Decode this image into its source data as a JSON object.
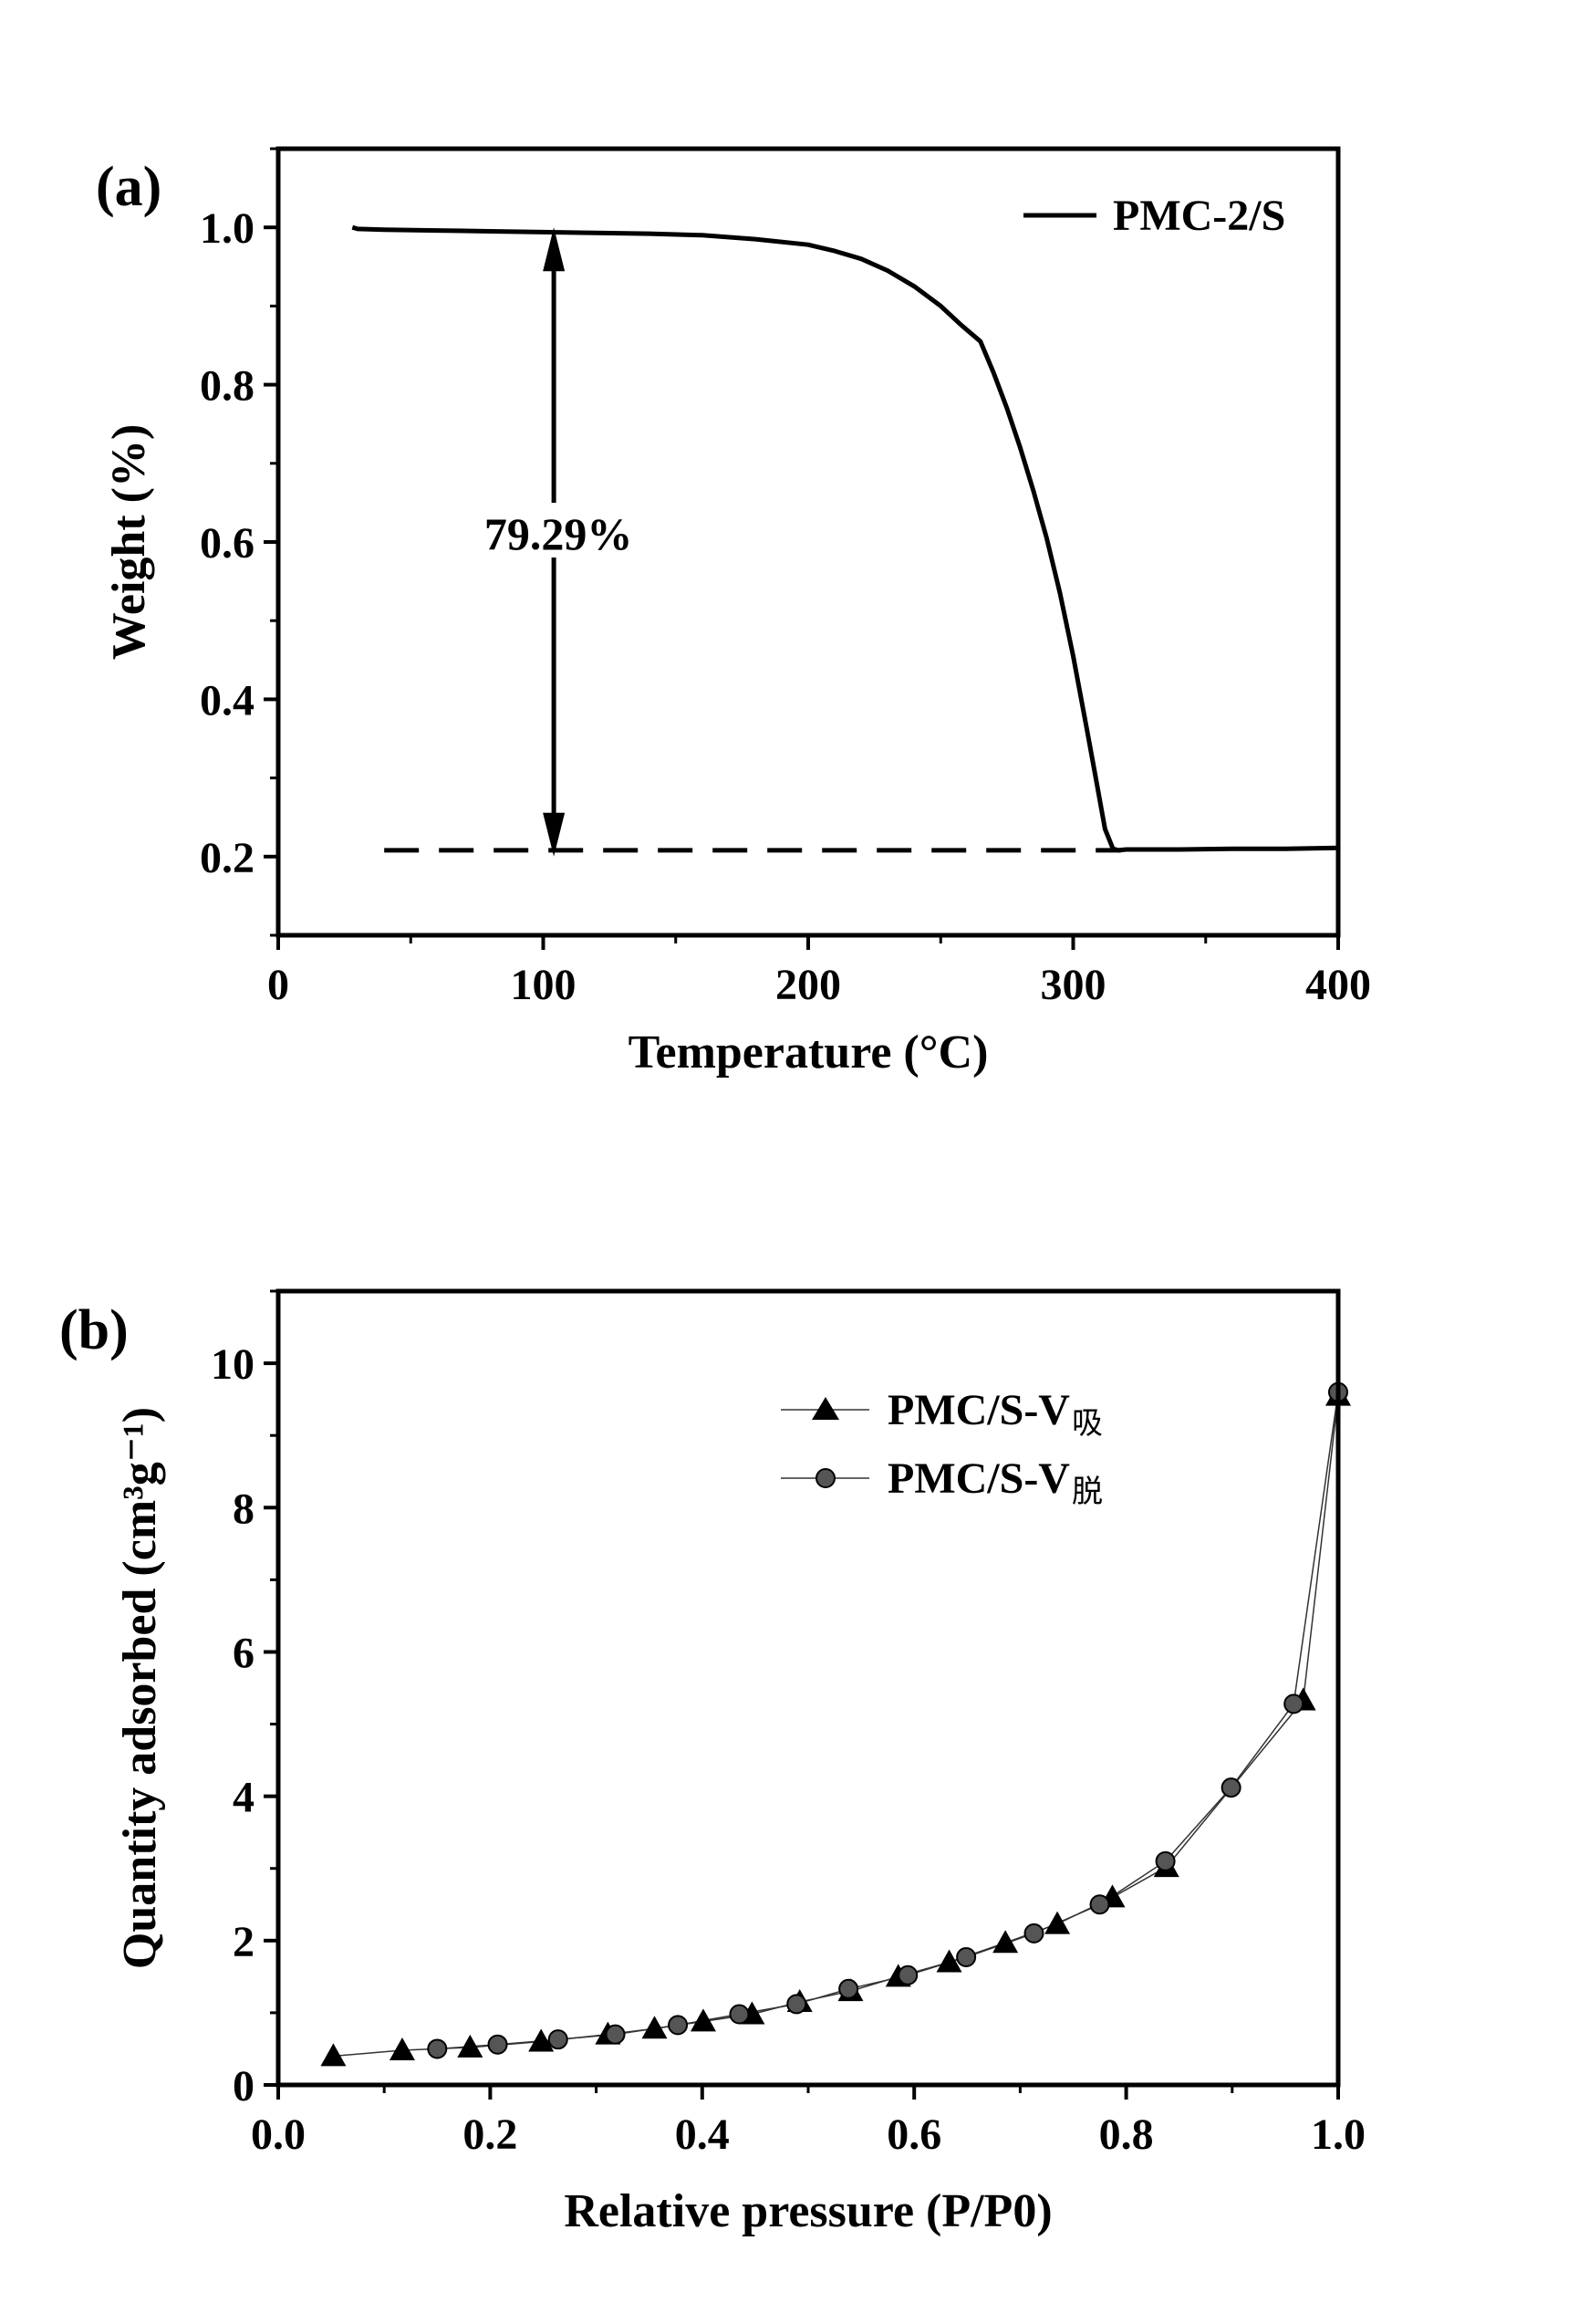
{
  "chart_data": [
    {
      "type": "line",
      "panel_label": "(a)",
      "xlabel": "Temperature (°C)",
      "ylabel": "Weight (%)",
      "xlim": [
        0,
        400
      ],
      "ylim": [
        0.1,
        1.1
      ],
      "xticks": [
        0,
        100,
        200,
        300,
        400
      ],
      "xtick_labels": [
        "0",
        "100",
        "200",
        "300",
        "400"
      ],
      "yticks": [
        0.2,
        0.4,
        0.6,
        0.8,
        1.0
      ],
      "ytick_labels": [
        "0.2",
        "0.4",
        "0.6",
        "0.8",
        "1.0"
      ],
      "legend": {
        "position": "top-right",
        "entries": [
          "PMC-2/S"
        ]
      },
      "series": [
        {
          "name": "PMC-2/S",
          "x": [
            28,
            30,
            40,
            60,
            80,
            100,
            120,
            140,
            160,
            180,
            200,
            210,
            220,
            230,
            240,
            250,
            258,
            265,
            270,
            275,
            280,
            285,
            290,
            295,
            300,
            305,
            308,
            312,
            315,
            317,
            320,
            340,
            360,
            380,
            400
          ],
          "y": [
            1.0,
            0.998,
            0.997,
            0.996,
            0.995,
            0.994,
            0.993,
            0.992,
            0.99,
            0.985,
            0.978,
            0.97,
            0.96,
            0.945,
            0.925,
            0.9,
            0.875,
            0.855,
            0.815,
            0.77,
            0.72,
            0.665,
            0.605,
            0.535,
            0.455,
            0.365,
            0.31,
            0.235,
            0.21,
            0.208,
            0.209,
            0.209,
            0.21,
            0.21,
            0.211
          ]
        }
      ],
      "annotations": [
        {
          "text": "79.29%",
          "arrow_x": 104,
          "arrow_from": 1.0,
          "arrow_to": 0.2,
          "reference_line": {
            "y": 0.208,
            "x_from": 40,
            "x_to": 318,
            "style": "dashed"
          }
        }
      ]
    },
    {
      "type": "line",
      "panel_label": "(b)",
      "xlabel": "Relative pressure (P/P0)",
      "ylabel": "Quantity adsorbed (cm³g⁻¹)",
      "xlim": [
        0.0,
        1.0
      ],
      "ylim": [
        0,
        11
      ],
      "xticks": [
        0.0,
        0.2,
        0.4,
        0.6,
        0.8,
        1.0
      ],
      "xtick_labels": [
        "0.0",
        "0.2",
        "0.4",
        "0.6",
        "0.8",
        "1.0"
      ],
      "yticks": [
        0,
        2,
        4,
        6,
        8,
        10
      ],
      "ytick_labels": [
        "0",
        "2",
        "4",
        "6",
        "8",
        "10"
      ],
      "legend": {
        "position": "top-right",
        "entries": [
          "PMC/S-V吸",
          "PMC/S-V脱"
        ]
      },
      "series": [
        {
          "name": "PMC/S-V",
          "name_sub": "吸",
          "marker": "triangle",
          "x": [
            0.052,
            0.117,
            0.181,
            0.248,
            0.311,
            0.355,
            0.401,
            0.447,
            0.492,
            0.54,
            0.585,
            0.633,
            0.686,
            0.735,
            0.787,
            0.838,
            0.967,
            1.0
          ],
          "y": [
            0.4,
            0.48,
            0.52,
            0.6,
            0.7,
            0.78,
            0.88,
            0.98,
            1.15,
            1.3,
            1.5,
            1.7,
            1.97,
            2.23,
            2.6,
            3.02,
            5.33,
            9.55
          ]
        },
        {
          "name": "PMC/S-V",
          "name_sub": "脱",
          "marker": "circle",
          "x": [
            0.15,
            0.207,
            0.264,
            0.318,
            0.377,
            0.435,
            0.489,
            0.538,
            0.594,
            0.649,
            0.713,
            0.775,
            0.837,
            0.899,
            0.958,
            1.0
          ],
          "y": [
            0.5,
            0.56,
            0.63,
            0.7,
            0.83,
            0.98,
            1.12,
            1.33,
            1.52,
            1.77,
            2.1,
            2.5,
            3.1,
            4.12,
            5.28,
            9.6
          ]
        }
      ]
    }
  ]
}
